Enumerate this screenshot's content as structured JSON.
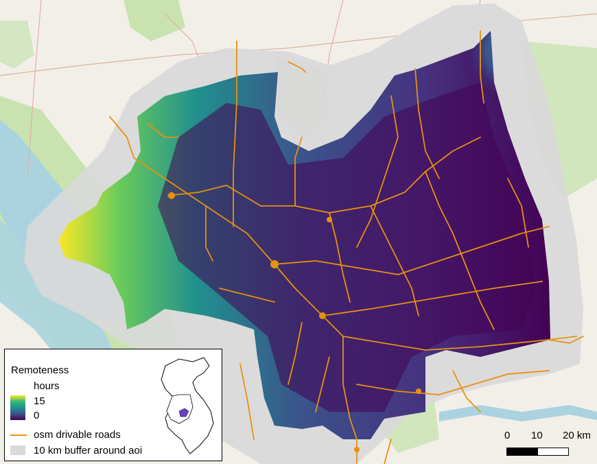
{
  "legend": {
    "title": "Remoteness",
    "unit": "hours",
    "max_label": "15",
    "min_label": "0",
    "gradient_colors": [
      "#fde725",
      "#35b779",
      "#21908d",
      "#3b528b",
      "#440154"
    ],
    "roads_label": "osm drivable roads",
    "buffer_label": "10 km buffer around aoi",
    "roads_color": "#e8910f",
    "buffer_color": "#d9d9d9"
  },
  "scalebar": {
    "labels": [
      "0",
      "10",
      "20 km"
    ]
  },
  "map": {
    "base_color": "#f2efe9",
    "water_color": "#aad3df",
    "forest_color": "#c8e3b0",
    "remoteness_max_hours": 15,
    "remoteness_min_hours": 0
  }
}
